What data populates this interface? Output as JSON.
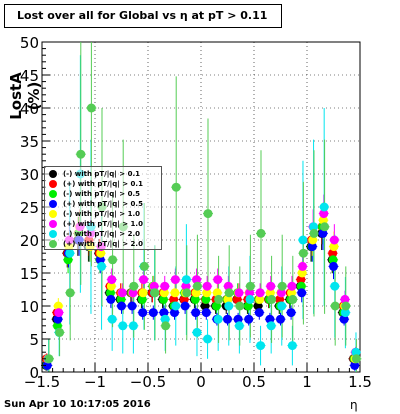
{
  "title": "Lost over all for Global vs  η at pT > 0.11",
  "timestamp": "Sun Apr 10 10:17:05 2016",
  "chart_data": {
    "type": "scatter",
    "title": "Lost over all for Global vs  η at pT > 0.11",
    "xlabel": "η",
    "ylabel": "LostA (%)",
    "xlim": [
      -1.5,
      1.5
    ],
    "ylim": [
      0,
      50
    ],
    "x_ticks": [
      "−1.5",
      "−1",
      "−0.5",
      "0",
      "0.5",
      "1",
      "1.5"
    ],
    "y_ticks": [
      "0",
      "5",
      "10",
      "15",
      "20",
      "25",
      "30",
      "35",
      "40",
      "45",
      "50"
    ],
    "legend_position": "left-middle",
    "series": [
      {
        "name": "(-) with pT/|q| > 0.1",
        "color": "#000000",
        "x": [
          -1.45,
          -1.35,
          -1.25,
          -1.15,
          -1.05,
          -0.95,
          -0.85,
          -0.75,
          -0.65,
          -0.55,
          -0.45,
          -0.35,
          -0.25,
          -0.15,
          -0.05,
          0.05,
          0.15,
          0.25,
          0.35,
          0.45,
          0.55,
          0.65,
          0.75,
          0.85,
          0.95,
          1.05,
          1.15,
          1.25,
          1.35,
          1.45
        ],
        "y": [
          1,
          8,
          18,
          20,
          19,
          18,
          12,
          11,
          12,
          11,
          12,
          11,
          10,
          11,
          11,
          10,
          10,
          10,
          11,
          10,
          10,
          11,
          10,
          11,
          13,
          19,
          21,
          17,
          9,
          2
        ]
      },
      {
        "name": "(+) with pT/|q| > 0.1",
        "color": "#ff0000",
        "x": [
          -1.45,
          -1.35,
          -1.25,
          -1.15,
          -1.05,
          -0.95,
          -0.85,
          -0.75,
          -0.65,
          -0.55,
          -0.45,
          -0.35,
          -0.25,
          -0.15,
          -0.05,
          0.05,
          0.15,
          0.25,
          0.35,
          0.45,
          0.55,
          0.65,
          0.75,
          0.85,
          0.95,
          1.05,
          1.15,
          1.25,
          1.35,
          1.45
        ],
        "y": [
          2,
          9,
          18,
          21,
          20,
          18,
          13,
          12,
          12,
          12,
          12,
          12,
          11,
          11,
          12,
          11,
          11,
          11,
          11,
          11,
          11,
          11,
          11,
          12,
          14,
          20,
          22,
          18,
          10,
          2
        ]
      },
      {
        "name": "(-) with pT/|q| > 0.5",
        "color": "#00ee00",
        "x": [
          -1.45,
          -1.35,
          -1.25,
          -1.15,
          -1.05,
          -0.95,
          -0.85,
          -0.75,
          -0.65,
          -0.55,
          -0.45,
          -0.35,
          -0.25,
          -0.15,
          -0.05,
          0.05,
          0.15,
          0.25,
          0.35,
          0.45,
          0.55,
          0.65,
          0.75,
          0.85,
          0.95,
          1.05,
          1.15,
          1.25,
          1.35,
          1.45
        ],
        "y": [
          1,
          7,
          17,
          21,
          19,
          17,
          12,
          11,
          12,
          11,
          13,
          11,
          10,
          12,
          11,
          11,
          10,
          11,
          12,
          10,
          11,
          11,
          10,
          11,
          13,
          19,
          22,
          17,
          9,
          2
        ]
      },
      {
        "name": "(+) with pT/|q| > 0.5",
        "color": "#0000ff",
        "x": [
          -1.45,
          -1.35,
          -1.25,
          -1.15,
          -1.05,
          -0.95,
          -0.85,
          -0.75,
          -0.65,
          -0.55,
          -0.45,
          -0.35,
          -0.25,
          -0.15,
          -0.05,
          0.05,
          0.15,
          0.25,
          0.35,
          0.45,
          0.55,
          0.65,
          0.75,
          0.85,
          0.95,
          1.05,
          1.15,
          1.25,
          1.35,
          1.45
        ],
        "y": [
          1,
          8,
          18,
          20,
          19,
          17,
          11,
          10,
          10,
          9,
          9,
          9,
          9,
          10,
          9,
          9,
          8,
          8,
          8,
          8,
          9,
          8,
          8,
          9,
          12,
          19,
          21,
          16,
          8,
          1
        ]
      },
      {
        "name": "(-) with pT/|q| > 1.0",
        "color": "#ffff00",
        "x": [
          -1.45,
          -1.35,
          -1.25,
          -1.15,
          -1.05,
          -0.95,
          -0.85,
          -0.75,
          -0.65,
          -0.55,
          -0.45,
          -0.35,
          -0.25,
          -0.15,
          -0.05,
          0.05,
          0.15,
          0.25,
          0.35,
          0.45,
          0.55,
          0.65,
          0.75,
          0.85,
          0.95,
          1.05,
          1.15,
          1.25,
          1.35,
          1.45
        ],
        "y": [
          2,
          10,
          19,
          22,
          19,
          18,
          13,
          12,
          12,
          12,
          13,
          12,
          12,
          12,
          12,
          12,
          12,
          11,
          12,
          12,
          11,
          12,
          12,
          12,
          15,
          20,
          23,
          19,
          10,
          2
        ]
      },
      {
        "name": "(+) with pT/|q| > 1.0",
        "color": "#ff00ff",
        "x": [
          -1.45,
          -1.35,
          -1.25,
          -1.15,
          -1.05,
          -0.95,
          -0.85,
          -0.75,
          -0.65,
          -0.55,
          -0.45,
          -0.35,
          -0.25,
          -0.15,
          -0.05,
          0.05,
          0.15,
          0.25,
          0.35,
          0.45,
          0.55,
          0.65,
          0.75,
          0.85,
          0.95,
          1.05,
          1.15,
          1.25,
          1.35,
          1.45
        ],
        "y": [
          2,
          9,
          20,
          22,
          21,
          19,
          14,
          12,
          12,
          14,
          13,
          13,
          14,
          13,
          14,
          13,
          14,
          13,
          12,
          12,
          12,
          13,
          12,
          13,
          16,
          22,
          24,
          20,
          11,
          3
        ]
      },
      {
        "name": "(-) with pT/|q| > 2.0",
        "color": "#00e5ee",
        "x": [
          -1.45,
          -1.35,
          -1.25,
          -1.15,
          -1.05,
          -0.95,
          -0.85,
          -0.75,
          -0.65,
          -0.55,
          -0.45,
          -0.35,
          -0.25,
          -0.15,
          -0.05,
          0.05,
          0.15,
          0.25,
          0.35,
          0.45,
          0.55,
          0.65,
          0.75,
          0.85,
          0.95,
          1.05,
          1.15,
          1.25,
          1.35,
          1.45
        ],
        "y": [
          2,
          6,
          18,
          30,
          22,
          16,
          8,
          7,
          7,
          16,
          12,
          8,
          10,
          14,
          6,
          5,
          8,
          10,
          7,
          11,
          4,
          7,
          10,
          4,
          20,
          22,
          25,
          13,
          9,
          3
        ]
      },
      {
        "name": "(+) with pT/|q| > 2.0",
        "color": "#55cc55",
        "x": [
          -1.45,
          -1.35,
          -1.25,
          -1.15,
          -1.05,
          -0.95,
          -0.85,
          -0.75,
          -0.65,
          -0.55,
          -0.45,
          -0.35,
          -0.25,
          -0.15,
          -0.05,
          0.05,
          0.15,
          0.25,
          0.35,
          0.45,
          0.55,
          0.65,
          0.75,
          0.85,
          0.95,
          1.05,
          1.15,
          1.25,
          1.35,
          1.45
        ],
        "y": [
          2,
          6,
          12,
          33,
          40,
          25,
          17,
          22,
          13,
          16,
          12,
          7,
          28,
          12,
          13,
          24,
          11,
          12,
          10,
          13,
          21,
          11,
          13,
          11,
          18,
          21,
          22,
          10,
          10,
          2
        ]
      }
    ]
  }
}
